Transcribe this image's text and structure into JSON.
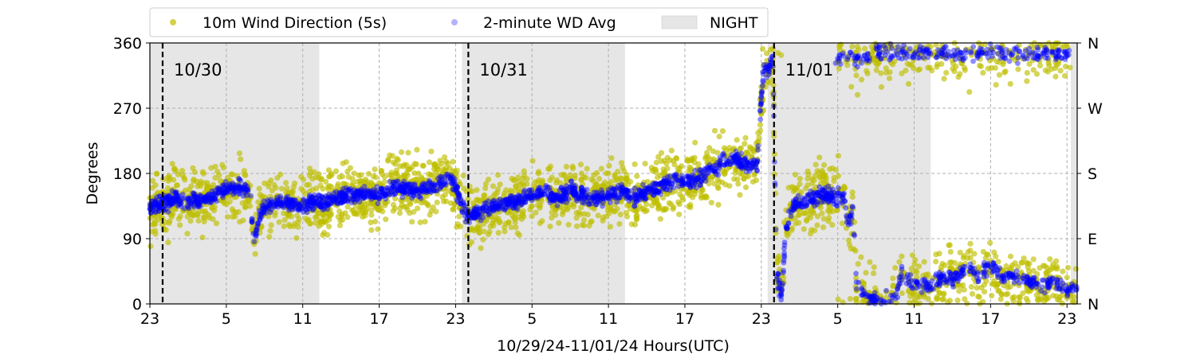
{
  "chart_data": {
    "type": "scatter",
    "title": "",
    "xlabel": "10/29/24-11/01/24  Hours(UTC)",
    "ylabel": "Degrees",
    "x_range_hours": [
      23,
      95.8
    ],
    "ylim": [
      0,
      360
    ],
    "x_ticks": [
      {
        "h": 23,
        "label": "23"
      },
      {
        "h": 29,
        "label": "5"
      },
      {
        "h": 35,
        "label": "11"
      },
      {
        "h": 41,
        "label": "17"
      },
      {
        "h": 47,
        "label": "23"
      },
      {
        "h": 53,
        "label": "5"
      },
      {
        "h": 59,
        "label": "11"
      },
      {
        "h": 65,
        "label": "17"
      },
      {
        "h": 71,
        "label": "23"
      },
      {
        "h": 77,
        "label": "5"
      },
      {
        "h": 83,
        "label": "11"
      },
      {
        "h": 89,
        "label": "17"
      },
      {
        "h": 95,
        "label": "23"
      }
    ],
    "y_ticks": [
      0,
      90,
      180,
      270,
      360
    ],
    "y_tick_labels": [
      "0",
      "90",
      "180",
      "270",
      "360"
    ],
    "right_axis_labels": [
      "N",
      "E",
      "S",
      "W",
      "N"
    ],
    "grid": true,
    "legend_position": "top-left, above plot",
    "night_shading": [
      {
        "start": 23,
        "end": 36.3
      },
      {
        "start": 47.5,
        "end": 60.3
      },
      {
        "start": 71.5,
        "end": 84.3
      },
      {
        "start": 95.3,
        "end": 95.8
      }
    ],
    "day_boundaries": [
      {
        "h": 24,
        "label": "10/30"
      },
      {
        "h": 48,
        "label": "10/31"
      },
      {
        "h": 72,
        "label": "11/01"
      }
    ],
    "series": [
      {
        "name": "10m Wind Direction (5s)",
        "color": "#bfbf00",
        "marker": "dot",
        "trend": [
          [
            23,
            135
          ],
          [
            24,
            138
          ],
          [
            25,
            145
          ],
          [
            26,
            140
          ],
          [
            27,
            142
          ],
          [
            28,
            150
          ],
          [
            29,
            158
          ],
          [
            30,
            160
          ],
          [
            30.8,
            160
          ],
          [
            31.2,
            85
          ],
          [
            31.6,
            120
          ],
          [
            32,
            132
          ],
          [
            33,
            138
          ],
          [
            34,
            140
          ],
          [
            35,
            135
          ],
          [
            36,
            140
          ],
          [
            37,
            143
          ],
          [
            38,
            147
          ],
          [
            39,
            150
          ],
          [
            40,
            153
          ],
          [
            41,
            150
          ],
          [
            42,
            158
          ],
          [
            43,
            160
          ],
          [
            44,
            155
          ],
          [
            45,
            162
          ],
          [
            46,
            170
          ],
          [
            46.5,
            175
          ],
          [
            47,
            162
          ],
          [
            47.5,
            130
          ],
          [
            48,
            122
          ],
          [
            49,
            128
          ],
          [
            50,
            135
          ],
          [
            51,
            140
          ],
          [
            52,
            142
          ],
          [
            53,
            150
          ],
          [
            54,
            155
          ],
          [
            55,
            145
          ],
          [
            56,
            158
          ],
          [
            57,
            150
          ],
          [
            58,
            145
          ],
          [
            59,
            150
          ],
          [
            60,
            155
          ],
          [
            61,
            148
          ],
          [
            62,
            155
          ],
          [
            63,
            162
          ],
          [
            64,
            170
          ],
          [
            65,
            168
          ],
          [
            66,
            172
          ],
          [
            67,
            185
          ],
          [
            68,
            195
          ],
          [
            69,
            200
          ],
          [
            70,
            190
          ],
          [
            70.7,
            195
          ],
          [
            70.9,
            260
          ],
          [
            71.2,
            330
          ],
          [
            71.6,
            320
          ],
          [
            71.9,
            345
          ],
          [
            72.2,
            40
          ],
          [
            72.6,
            10
          ],
          [
            72.9,
            95
          ],
          [
            73.3,
            130
          ],
          [
            74,
            140
          ],
          [
            75,
            145
          ],
          [
            76,
            150
          ],
          [
            77,
            145
          ],
          [
            77.5,
            150
          ],
          [
            77.8,
            110
          ],
          [
            78.2,
            130
          ],
          [
            78.5,
            20
          ],
          [
            79.5,
            10
          ],
          [
            80.5,
            5
          ],
          [
            81.5,
            8
          ],
          [
            82,
            40
          ],
          [
            83,
            30
          ],
          [
            84,
            25
          ],
          [
            85,
            35
          ],
          [
            86,
            30
          ],
          [
            87,
            50
          ],
          [
            88,
            40
          ],
          [
            89,
            55
          ],
          [
            90,
            35
          ],
          [
            91,
            40
          ],
          [
            92,
            30
          ],
          [
            93,
            25
          ],
          [
            94,
            30
          ],
          [
            95,
            20
          ],
          [
            95.8,
            25
          ]
        ],
        "spread": 32
      },
      {
        "name": "2-minute WD Avg",
        "color": "#0000ff",
        "marker": "dot",
        "trend": [
          [
            23,
            135
          ],
          [
            24,
            138
          ],
          [
            25,
            145
          ],
          [
            26,
            140
          ],
          [
            27,
            142
          ],
          [
            28,
            150
          ],
          [
            29,
            158
          ],
          [
            30,
            160
          ],
          [
            30.8,
            160
          ],
          [
            31.2,
            85
          ],
          [
            31.6,
            120
          ],
          [
            32,
            132
          ],
          [
            33,
            138
          ],
          [
            34,
            140
          ],
          [
            35,
            135
          ],
          [
            36,
            140
          ],
          [
            37,
            143
          ],
          [
            38,
            147
          ],
          [
            39,
            150
          ],
          [
            40,
            153
          ],
          [
            41,
            150
          ],
          [
            42,
            158
          ],
          [
            43,
            160
          ],
          [
            44,
            155
          ],
          [
            45,
            162
          ],
          [
            46,
            170
          ],
          [
            46.5,
            175
          ],
          [
            47,
            162
          ],
          [
            47.5,
            130
          ],
          [
            48,
            122
          ],
          [
            49,
            128
          ],
          [
            50,
            135
          ],
          [
            51,
            140
          ],
          [
            52,
            142
          ],
          [
            53,
            150
          ],
          [
            54,
            155
          ],
          [
            55,
            145
          ],
          [
            56,
            158
          ],
          [
            57,
            150
          ],
          [
            58,
            145
          ],
          [
            59,
            150
          ],
          [
            60,
            155
          ],
          [
            61,
            148
          ],
          [
            62,
            155
          ],
          [
            63,
            162
          ],
          [
            64,
            170
          ],
          [
            65,
            168
          ],
          [
            66,
            172
          ],
          [
            67,
            185
          ],
          [
            68,
            195
          ],
          [
            69,
            200
          ],
          [
            70,
            190
          ],
          [
            70.7,
            195
          ],
          [
            70.9,
            260
          ],
          [
            71.2,
            330
          ],
          [
            71.6,
            320
          ],
          [
            71.9,
            345
          ],
          [
            72.2,
            40
          ],
          [
            72.6,
            10
          ],
          [
            72.9,
            95
          ],
          [
            73.3,
            130
          ],
          [
            74,
            140
          ],
          [
            75,
            145
          ],
          [
            76,
            150
          ],
          [
            77,
            145
          ],
          [
            77.5,
            150
          ],
          [
            77.8,
            110
          ],
          [
            78.2,
            130
          ],
          [
            78.5,
            20
          ],
          [
            79.5,
            10
          ],
          [
            80.5,
            5
          ],
          [
            81.5,
            8
          ],
          [
            82,
            40
          ],
          [
            83,
            30
          ],
          [
            84,
            25
          ],
          [
            85,
            35
          ],
          [
            86,
            30
          ],
          [
            87,
            50
          ],
          [
            88,
            40
          ],
          [
            89,
            55
          ],
          [
            90,
            35
          ],
          [
            91,
            40
          ],
          [
            92,
            30
          ],
          [
            93,
            25
          ],
          [
            94,
            30
          ],
          [
            95,
            20
          ],
          [
            95.8,
            25
          ]
        ],
        "spread": 8
      },
      {
        "name": "NIGHT",
        "color": "#e6e6e6",
        "marker": "box"
      }
    ]
  }
}
